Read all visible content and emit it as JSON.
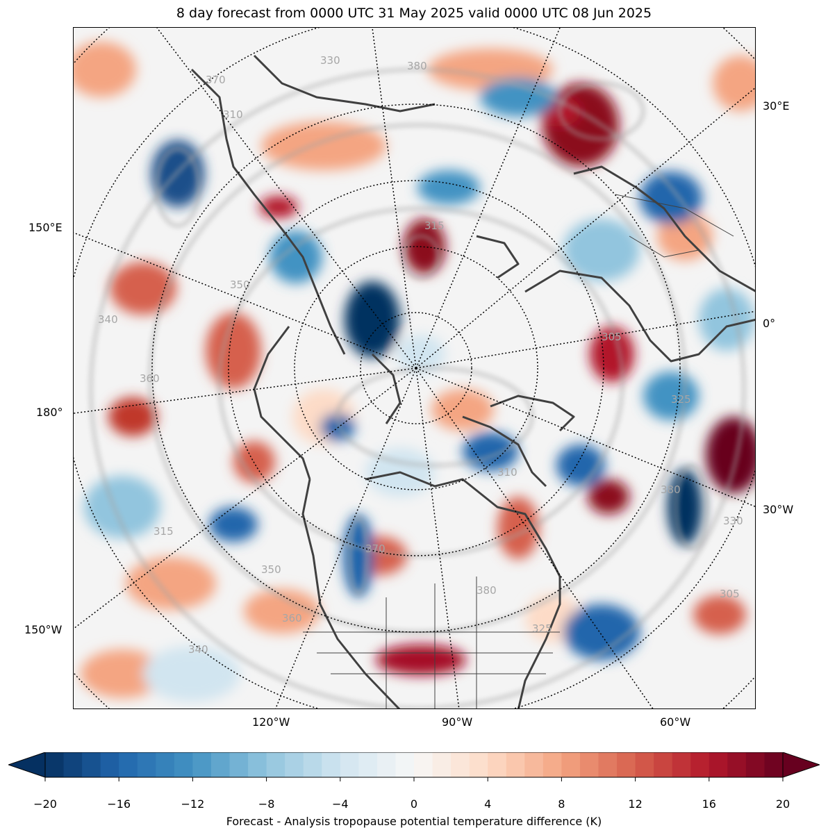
{
  "title": "8 day forecast from 0000 UTC 31 May 2025 valid 0000 UTC 08 Jun 2025",
  "map": {
    "projection": "north-polar-stereographic",
    "longitude_labels": {
      "lon_30E": "30°E",
      "lon_150E": "150°E",
      "lon_0": "0°",
      "lon_180": "180°",
      "lon_30W": "30°W",
      "lon_150W": "150°W",
      "lon_120W": "120°W",
      "lon_90W": "90°W",
      "lon_60W": "60°W"
    },
    "contour_labels": [
      "380",
      "330",
      "370",
      "310",
      "315",
      "350",
      "340",
      "360",
      "305",
      "325"
    ],
    "contour_color": "#a6a6a6",
    "coastline_color": "#404040",
    "graticule_style": "dotted black"
  },
  "colorbar": {
    "label": "Forecast - Analysis tropopause potential temperature difference (K)",
    "min": -20,
    "max": 20,
    "step": 1,
    "extend": "both",
    "colormap": "RdBu_r",
    "ticks": [
      "−20",
      "−16",
      "−12",
      "−8",
      "−4",
      "0",
      "4",
      "8",
      "12",
      "16",
      "20"
    ]
  }
}
